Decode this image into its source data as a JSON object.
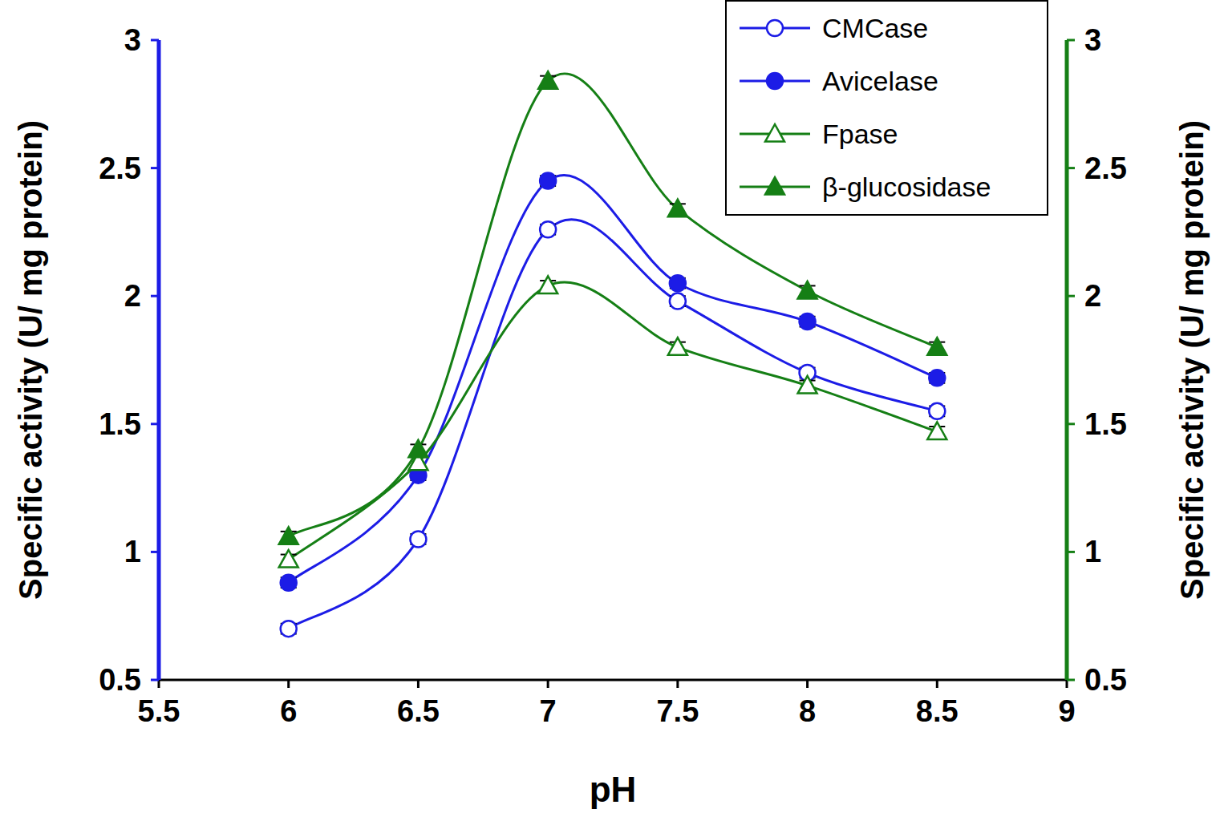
{
  "chart_data": {
    "type": "line",
    "x_label": "pH",
    "y_label": "Specific activity (U/ mg protein)",
    "y2_label": "Specific activity (U/ mg protein)",
    "x": [
      6,
      6.5,
      7,
      7.5,
      8,
      8.5
    ],
    "xlim": [
      5.5,
      9
    ],
    "xticks": [
      5.5,
      6,
      6.5,
      7,
      7.5,
      8,
      8.5,
      9
    ],
    "ylim": [
      0.5,
      3
    ],
    "yticks": [
      0.5,
      1,
      1.5,
      2,
      2.5,
      3
    ],
    "y2lim": [
      0.5,
      3
    ],
    "y2ticks": [
      0.5,
      1,
      1.5,
      2,
      2.5,
      3
    ],
    "legend": "top-right",
    "grid": false,
    "series": [
      {
        "name": "CMCase",
        "color": "#1c1ce6",
        "marker": "circle-open",
        "axis": "y",
        "values": [
          0.7,
          1.05,
          2.26,
          1.98,
          1.7,
          1.55
        ],
        "errors": [
          0.02,
          0.02,
          0.02,
          0.02,
          0.02,
          0.02
        ]
      },
      {
        "name": "Avicelase",
        "color": "#1c1ce6",
        "marker": "circle",
        "axis": "y",
        "values": [
          0.88,
          1.3,
          2.45,
          2.05,
          1.9,
          1.68
        ],
        "errors": [
          0.02,
          0.02,
          0.02,
          0.02,
          0.02,
          0.02
        ]
      },
      {
        "name": "Fpase",
        "color": "#157f15",
        "marker": "triangle-open",
        "axis": "y2",
        "values": [
          0.97,
          1.35,
          2.04,
          1.8,
          1.65,
          1.47
        ],
        "errors": [
          0.02,
          0.02,
          0.02,
          0.02,
          0.02,
          0.02
        ]
      },
      {
        "name": "β-glucosidase",
        "color": "#157f15",
        "marker": "triangle",
        "axis": "y2",
        "values": [
          1.06,
          1.4,
          2.84,
          2.34,
          2.02,
          1.8
        ],
        "errors": [
          0.02,
          0.02,
          0.02,
          0.02,
          0.02,
          0.02
        ]
      }
    ]
  }
}
